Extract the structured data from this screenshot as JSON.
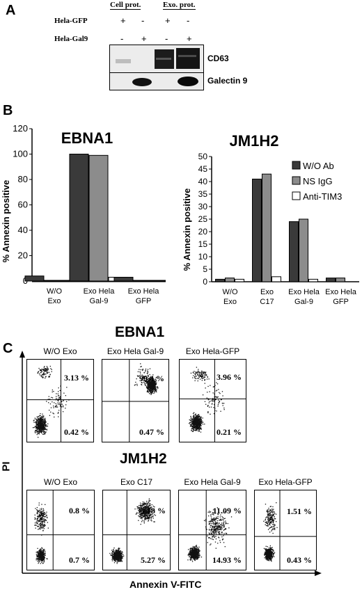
{
  "panelA": {
    "letter": "A",
    "groups": [
      "Cell prot.",
      "Exo. prot."
    ],
    "rows": [
      {
        "label": "Hela-GFP",
        "signs": [
          "+",
          "-",
          "+",
          "-"
        ]
      },
      {
        "label": "Hela-Gal9",
        "signs": [
          "-",
          "+",
          "-",
          "+"
        ]
      }
    ],
    "blots": [
      "CD63",
      "Galectin 9"
    ]
  },
  "panelB": {
    "letter": "B"
  },
  "panelC": {
    "letter": "C",
    "title1": "EBNA1",
    "title2": "JM1H2",
    "ylabel": "PI",
    "xlabel": "Annexin V-FITC",
    "ebna_plots": [
      {
        "title": "W/O Exo",
        "upper": "3.13 %",
        "lower": "0.42 %"
      },
      {
        "title": "Exo Hela Gal-9",
        "upper": "99.4 %",
        "lower": "0.47 %"
      },
      {
        "title": "Exo Hela-GFP",
        "upper": "3.96 %",
        "lower": "0.21 %"
      }
    ],
    "jm_plots": [
      {
        "title": "W/O Exo",
        "upper": "0.8 %",
        "lower": "0.7 %"
      },
      {
        "title": "Exo C17",
        "upper": "35.13 %",
        "lower": "5.27 %"
      },
      {
        "title": "Exo Hela Gal-9",
        "upper": "11.09 %",
        "lower": "14.93 %"
      },
      {
        "title": "Exo Hela-GFP",
        "upper": "1.51 %",
        "lower": "0.43 %"
      }
    ]
  },
  "chart_data": [
    {
      "type": "bar",
      "title": "EBNA1",
      "ylabel": "% Annexin positive",
      "ylim": [
        0,
        120
      ],
      "yticks": [
        0,
        20,
        40,
        60,
        80,
        100,
        120
      ],
      "categories": [
        "W/O Exo",
        "Exo Hela Gal-9",
        "Exo Hela GFP"
      ],
      "category_lines": [
        [
          "W/O",
          "Exo"
        ],
        [
          "Exo Hela",
          "Gal-9"
        ],
        [
          "Exo Hela",
          "GFP"
        ]
      ],
      "series": [
        {
          "name": "W/O Ab",
          "color": "#3a3a3a",
          "values": [
            4,
            100,
            3
          ]
        },
        {
          "name": "NS IgG",
          "color": "#8c8c8c",
          "values": [
            0,
            99,
            0
          ]
        },
        {
          "name": "Anti-TIM3",
          "color": "#ffffff",
          "values": [
            0,
            3,
            0
          ]
        }
      ]
    },
    {
      "type": "bar",
      "title": "JM1H2",
      "ylabel": "% Annexin positive",
      "ylim": [
        0,
        50
      ],
      "yticks": [
        0,
        5,
        10,
        15,
        20,
        25,
        30,
        35,
        40,
        45,
        50
      ],
      "categories": [
        "W/O Exo",
        "Exo C17",
        "Exo Hela Gal-9",
        "Exo Hela GFP"
      ],
      "category_lines": [
        [
          "W/O",
          "Exo"
        ],
        [
          "Exo",
          "C17"
        ],
        [
          "Exo Hela",
          "Gal-9"
        ],
        [
          "Exo Hela",
          "GFP"
        ]
      ],
      "series": [
        {
          "name": "W/O Ab",
          "color": "#3a3a3a",
          "values": [
            1,
            41,
            24,
            1.5
          ]
        },
        {
          "name": "NS IgG",
          "color": "#8c8c8c",
          "values": [
            1.5,
            43,
            25,
            1.5
          ]
        },
        {
          "name": "Anti-TIM3",
          "color": "#ffffff",
          "values": [
            1,
            2,
            1,
            0
          ]
        }
      ],
      "legend": "top-right"
    }
  ]
}
